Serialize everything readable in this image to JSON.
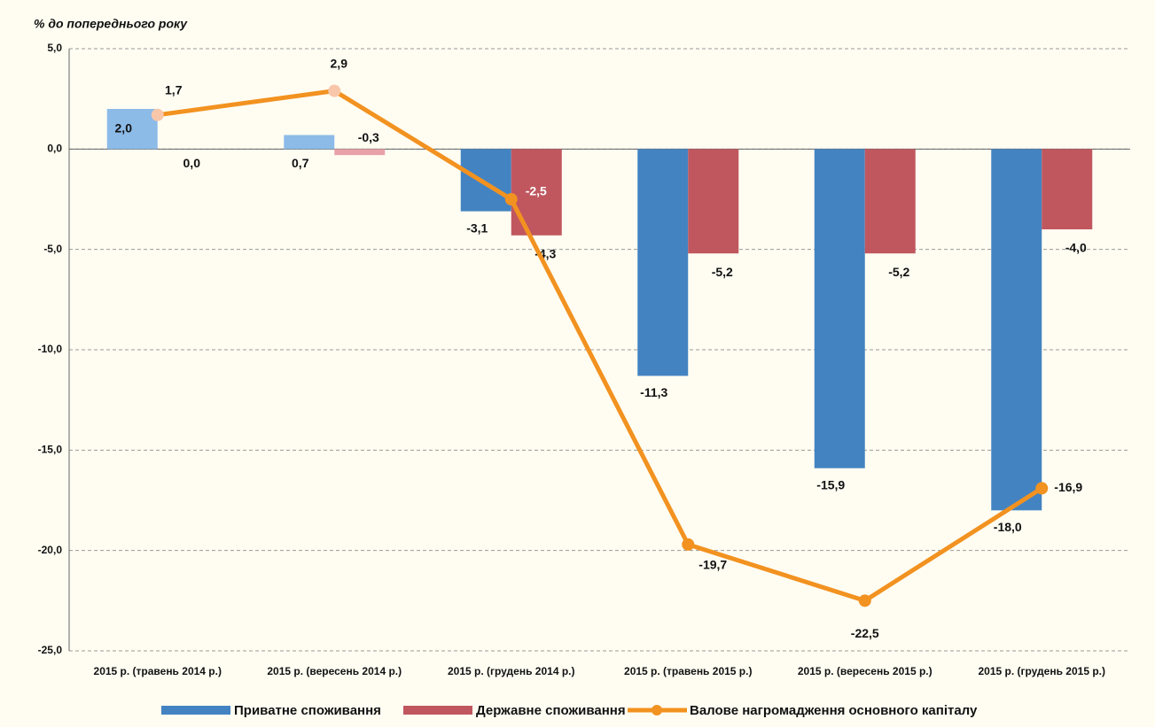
{
  "chart_data": {
    "type": "bar-line",
    "axis_label": "% до попереднього року",
    "categories": [
      "2015 р. (травень 2014 р.)",
      "2015 р. (вересень 2014 р.)",
      "2015 р. (грудень 2014 р.)",
      "2015 р. (травень 2015 р.)",
      "2015 р. (вересень 2015 р.)",
      "2015 р. (грудень 2015 р.)"
    ],
    "series": [
      {
        "name": "Приватне споживання",
        "type": "bar",
        "color": "#4383c2",
        "colors": [
          "#8dbbe8",
          "#8dbbe8",
          "#4383c2",
          "#4383c2",
          "#4383c2",
          "#4383c2"
        ],
        "values": [
          2.0,
          0.7,
          -3.1,
          -11.3,
          -15.9,
          -18.0
        ],
        "value_labels": [
          "2,0",
          "0,7",
          "-3,1",
          "-11,3",
          "-15,9",
          "-18,0"
        ]
      },
      {
        "name": "Державне споживання",
        "type": "bar",
        "color": "#c0575f",
        "colors": [
          "#e8a1a8",
          "#e8a1a8",
          "#c0575f",
          "#c0575f",
          "#c0575f",
          "#c0575f"
        ],
        "values": [
          0.0,
          -0.3,
          -4.3,
          -5.2,
          -5.2,
          -4.0
        ],
        "value_labels": [
          "0,0",
          "-0,3",
          "-4,3",
          "-5,2",
          "-5,2",
          "-4,0"
        ]
      },
      {
        "name": "Валове нагромадження основного капіталу",
        "type": "line",
        "color": "#f29220",
        "colors": [
          "#f8c7a9",
          "#f8c7a9",
          "#f29220",
          "#f29220",
          "#f29220",
          "#f29220"
        ],
        "values": [
          1.7,
          2.9,
          -2.5,
          -19.7,
          -22.5,
          -16.9
        ],
        "value_labels": [
          "1,7",
          "2,9",
          "-2,5",
          "-19,7",
          "-22,5",
          "-16,9"
        ]
      }
    ],
    "ylim": [
      -25,
      5
    ],
    "yticks": [
      {
        "value": -25,
        "label": "-25,0"
      },
      {
        "value": -20,
        "label": "-20,0"
      },
      {
        "value": -15,
        "label": "-15,0"
      },
      {
        "value": -10,
        "label": "-10,0"
      },
      {
        "value": -5,
        "label": "-5,0"
      },
      {
        "value": 0,
        "label": "0,0"
      },
      {
        "value": 5,
        "label": "5,0"
      }
    ],
    "grid": true,
    "legend": "bottom"
  }
}
